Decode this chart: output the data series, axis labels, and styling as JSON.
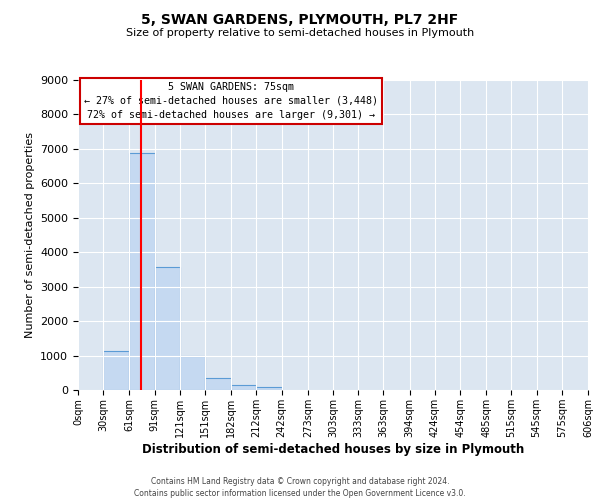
{
  "title": "5, SWAN GARDENS, PLYMOUTH, PL7 2HF",
  "subtitle": "Size of property relative to semi-detached houses in Plymouth",
  "xlabel": "Distribution of semi-detached houses by size in Plymouth",
  "ylabel": "Number of semi-detached properties",
  "bin_labels": [
    "0sqm",
    "30sqm",
    "61sqm",
    "91sqm",
    "121sqm",
    "151sqm",
    "182sqm",
    "212sqm",
    "242sqm",
    "273sqm",
    "303sqm",
    "333sqm",
    "363sqm",
    "394sqm",
    "424sqm",
    "454sqm",
    "485sqm",
    "515sqm",
    "545sqm",
    "575sqm",
    "606sqm"
  ],
  "bin_edges": [
    0,
    30,
    61,
    91,
    121,
    151,
    182,
    212,
    242,
    273,
    303,
    333,
    363,
    394,
    424,
    454,
    485,
    515,
    545,
    575,
    606
  ],
  "bar_heights": [
    0,
    1130,
    6880,
    3560,
    980,
    350,
    155,
    90,
    0,
    0,
    0,
    0,
    0,
    0,
    0,
    0,
    0,
    0,
    0,
    0
  ],
  "bar_color": "#c5d9f1",
  "bar_edge_color": "#5b9bd5",
  "property_value": 75,
  "property_line_color": "#ff0000",
  "ylim": [
    0,
    9000
  ],
  "yticks": [
    0,
    1000,
    2000,
    3000,
    4000,
    5000,
    6000,
    7000,
    8000,
    9000
  ],
  "grid_color": "#ffffff",
  "bg_color": "#dce6f1",
  "annotation_title": "5 SWAN GARDENS: 75sqm",
  "annotation_line1": "← 27% of semi-detached houses are smaller (3,448)",
  "annotation_line2": "72% of semi-detached houses are larger (9,301) →",
  "annotation_box_color": "#ffffff",
  "annotation_box_edge": "#cc0000",
  "footer_line1": "Contains HM Land Registry data © Crown copyright and database right 2024.",
  "footer_line2": "Contains public sector information licensed under the Open Government Licence v3.0."
}
